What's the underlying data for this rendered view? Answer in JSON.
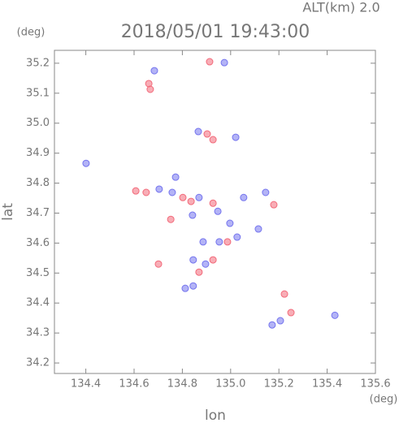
{
  "chart_data": {
    "type": "scatter",
    "title": "2018/05/01 19:43:00",
    "subtitle": "ALT(km) 2.0",
    "x_label": "lon",
    "y_label": "lat",
    "x_unit": "(deg)",
    "y_unit": "(deg)",
    "xlim": [
      134.27,
      135.6
    ],
    "ylim": [
      34.165,
      35.243
    ],
    "xticks": [
      134.4,
      134.6,
      134.8,
      {
        "value": 135,
        "label": "135.0"
      },
      135.2,
      135.4,
      135.6
    ],
    "yticks": [
      34.2,
      34.3,
      34.4,
      34.5,
      34.6,
      34.7,
      34.8,
      34.9,
      {
        "value": 35,
        "label": "35.0"
      },
      35.1,
      35.2
    ],
    "series": [
      {
        "color": "#f26a7a",
        "x": [
          134.661,
          134.667,
          134.913,
          134.903,
          134.927,
          134.607,
          134.65,
          134.802,
          134.836,
          134.927,
          135.179,
          134.987,
          134.752,
          134.869,
          134.927,
          134.701,
          135.223,
          135.25
        ],
        "values": [
          35.132,
          35.113,
          35.205,
          34.964,
          34.945,
          34.774,
          34.769,
          34.752,
          34.739,
          34.733,
          34.728,
          34.604,
          34.679,
          34.503,
          34.544,
          34.53,
          34.43,
          34.368
        ]
      },
      {
        "color": "#7474ee",
        "x": [
          134.684,
          134.974,
          134.866,
          135.021,
          134.401,
          134.772,
          134.704,
          134.758,
          134.869,
          134.947,
          135.054,
          135.145,
          134.842,
          134.997,
          135.027,
          134.953,
          134.886,
          135.115,
          134.896,
          134.812,
          134.845,
          134.845,
          135.206,
          135.172,
          135.432
        ],
        "values": [
          35.175,
          35.202,
          34.972,
          34.953,
          34.866,
          34.82,
          34.78,
          34.769,
          34.752,
          34.706,
          34.752,
          34.769,
          34.693,
          34.666,
          34.62,
          34.604,
          34.604,
          34.647,
          34.53,
          34.449,
          34.544,
          34.457,
          34.341,
          34.327,
          34.359
        ]
      }
    ]
  }
}
